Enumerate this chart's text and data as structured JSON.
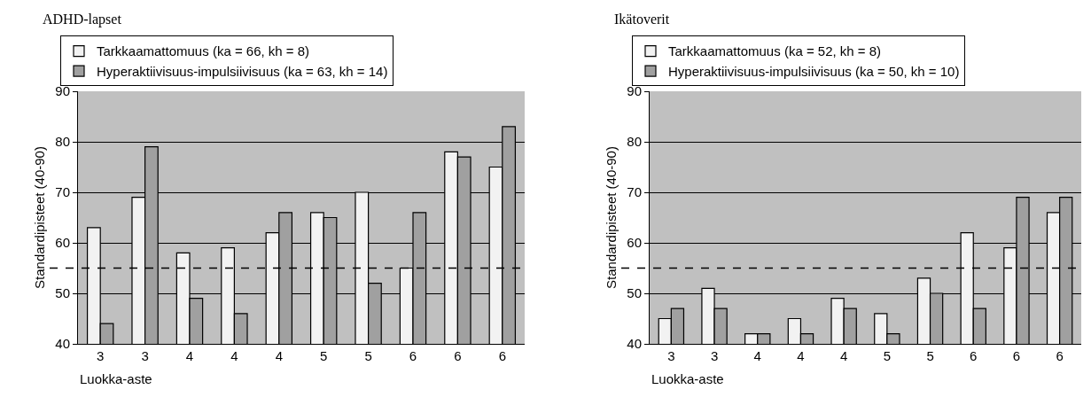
{
  "chart_data": [
    {
      "type": "bar",
      "title": "ADHD-lapset",
      "xlabel": "Luokka-aste",
      "ylabel": "Standardipisteet (40-90)",
      "categories": [
        "3",
        "3",
        "4",
        "4",
        "4",
        "5",
        "5",
        "6",
        "6",
        "6"
      ],
      "series": [
        {
          "name": "Tarkkaamattomuus (ka = 66, kh = 8)",
          "color": "#f2f2f2",
          "values": [
            63,
            69,
            58,
            59,
            62,
            66,
            70,
            55,
            78,
            75
          ]
        },
        {
          "name": "Hyperaktiivisuus-impulsiivisuus (ka = 63, kh = 14)",
          "color": "#a0a0a0",
          "values": [
            44,
            79,
            49,
            46,
            66,
            65,
            52,
            66,
            77,
            83
          ]
        }
      ],
      "ylim": [
        40,
        90
      ],
      "yticks": [
        40,
        50,
        60,
        70,
        80,
        90
      ],
      "grid": "y",
      "legend": "top",
      "ref_lines": [
        {
          "axis": "y",
          "value": 55,
          "line_style": "dashed",
          "color": "#000000"
        }
      ]
    },
    {
      "type": "bar",
      "title": "Ikätoverit",
      "xlabel": "Luokka-aste",
      "ylabel": "Standardipisteet (40-90)",
      "categories": [
        "3",
        "3",
        "4",
        "4",
        "4",
        "5",
        "5",
        "6",
        "6",
        "6"
      ],
      "series": [
        {
          "name": "Tarkkaamattomuus (ka = 52, kh = 8)",
          "color": "#f2f2f2",
          "values": [
            45,
            51,
            42,
            45,
            49,
            46,
            53,
            62,
            59,
            66
          ]
        },
        {
          "name": "Hyperaktiivisuus-impulsiivisuus (ka = 50, kh = 10)",
          "color": "#a0a0a0",
          "values": [
            47,
            47,
            42,
            42,
            47,
            42,
            50,
            47,
            69,
            69
          ]
        }
      ],
      "ylim": [
        40,
        90
      ],
      "yticks": [
        40,
        50,
        60,
        70,
        80,
        90
      ],
      "grid": "y",
      "legend": "top",
      "ref_lines": [
        {
          "axis": "y",
          "value": 55,
          "line_style": "dashed",
          "color": "#000000"
        }
      ]
    }
  ]
}
